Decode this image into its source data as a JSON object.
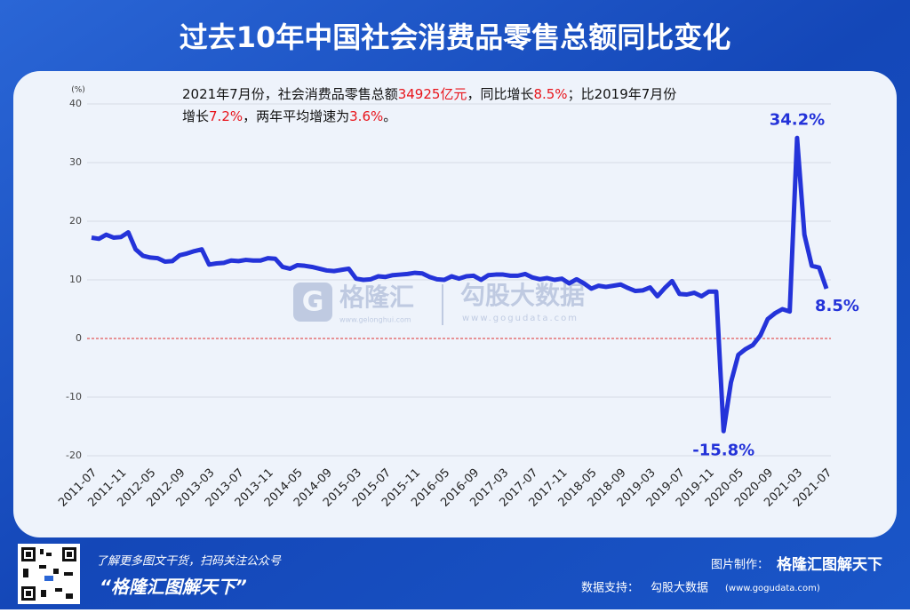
{
  "header": {
    "title": "过去10年中国社会消费品零售总额同比变化"
  },
  "chart_data": {
    "type": "line",
    "y_unit": "(%)",
    "annotation": [
      [
        {
          "text": "2021年7月份，社会消费品零售总额",
          "color": "#111111"
        },
        {
          "text": "34925亿元",
          "color": "#e8141b"
        },
        {
          "text": "，同比增长",
          "color": "#111111"
        },
        {
          "text": "8.5%",
          "color": "#e8141b"
        },
        {
          "text": "；比2019年7月份",
          "color": "#111111"
        }
      ],
      [
        {
          "text": "增长",
          "color": "#111111"
        },
        {
          "text": "7.2%",
          "color": "#e8141b"
        },
        {
          "text": "，两年平均增速为",
          "color": "#111111"
        },
        {
          "text": "3.6%",
          "color": "#e8141b"
        },
        {
          "text": "。",
          "color": "#111111"
        }
      ]
    ],
    "categories": [
      "2011-07",
      null,
      null,
      null,
      "2011-11",
      null,
      null,
      null,
      "2012-05",
      null,
      null,
      null,
      "2012-09",
      null,
      null,
      null,
      "2013-03",
      null,
      null,
      null,
      "2013-07",
      null,
      null,
      null,
      "2013-11",
      null,
      null,
      null,
      "2014-05",
      null,
      null,
      null,
      "2014-09",
      null,
      null,
      null,
      "2015-03",
      null,
      null,
      null,
      "2015-07",
      null,
      null,
      null,
      "2015-11",
      null,
      null,
      null,
      "2016-05",
      null,
      null,
      null,
      "2016-09",
      null,
      null,
      null,
      "2017-03",
      null,
      null,
      null,
      "2017-07",
      null,
      null,
      null,
      "2017-11",
      null,
      null,
      null,
      "2018-05",
      null,
      null,
      null,
      "2018-09",
      null,
      null,
      null,
      "2019-03",
      null,
      null,
      null,
      "2019-07",
      null,
      null,
      null,
      "2019-11",
      null,
      null,
      null,
      "2020-05",
      null,
      null,
      null,
      "2020-09",
      null,
      null,
      null,
      "2021-03",
      null,
      null,
      null,
      "2021-07"
    ],
    "values": [
      17.2,
      17.0,
      17.7,
      17.2,
      17.3,
      18.1,
      15.2,
      14.1,
      13.8,
      13.7,
      13.1,
      13.2,
      14.2,
      14.5,
      14.9,
      15.2,
      12.6,
      12.8,
      12.9,
      13.3,
      13.2,
      13.4,
      13.3,
      13.3,
      13.7,
      13.6,
      12.2,
      11.9,
      12.5,
      12.4,
      12.2,
      11.9,
      11.6,
      11.5,
      11.7,
      11.9,
      10.2,
      10.0,
      10.1,
      10.6,
      10.5,
      10.8,
      10.9,
      11.0,
      11.2,
      11.1,
      10.5,
      10.1,
      10.0,
      10.6,
      10.2,
      10.6,
      10.7,
      10.0,
      10.8,
      10.9,
      10.9,
      10.7,
      10.7,
      11.0,
      10.4,
      10.1,
      10.3,
      10.0,
      10.2,
      9.4,
      10.1,
      9.4,
      8.5,
      9.0,
      8.8,
      9.0,
      9.2,
      8.6,
      8.1,
      8.2,
      8.7,
      7.2,
      8.6,
      9.8,
      7.6,
      7.5,
      7.8,
      7.2,
      8.0,
      8.0,
      -15.8,
      -7.5,
      -2.8,
      -1.8,
      -1.1,
      0.5,
      3.3,
      4.3,
      5.0,
      4.6,
      34.2,
      17.7,
      12.4,
      12.1,
      8.5
    ],
    "value_labels": [
      null,
      null,
      null,
      null,
      null,
      null,
      null,
      null,
      null,
      null,
      null,
      null,
      null,
      null,
      null,
      null,
      null,
      null,
      null,
      null,
      null,
      null,
      null,
      null,
      null,
      null,
      null,
      null,
      null,
      null,
      null,
      null,
      null,
      null,
      null,
      null,
      null,
      null,
      null,
      null,
      null,
      null,
      null,
      null,
      null,
      null,
      null,
      null,
      null,
      null,
      null,
      null,
      null,
      null,
      null,
      null,
      null,
      null,
      null,
      null,
      null,
      null,
      null,
      null,
      null,
      null,
      null,
      null,
      null,
      null,
      null,
      null,
      null,
      null,
      null,
      null,
      null,
      null,
      null,
      null,
      null,
      null,
      null,
      null,
      null,
      null,
      "-15.8%",
      null,
      null,
      null,
      null,
      null,
      null,
      null,
      null,
      null,
      "34.2%",
      null,
      null,
      null,
      "8.5%"
    ],
    "color": "#2433d9",
    "ylim": [
      -20,
      40
    ],
    "yticks": [
      -20,
      -10,
      0,
      10,
      20,
      30,
      40
    ],
    "grid": true,
    "zero_line_color": "#e03030"
  },
  "watermark": {
    "brand": "格隆汇",
    "brand_url": "www.gelonghui.com",
    "partner": "勾股大数据",
    "partner_url": "www.gogudata.com"
  },
  "footer": {
    "promo": "了解更多图文干货，扫码关注公众号",
    "account": "“格隆汇图解天下”",
    "made_by_label": "图片制作：",
    "made_by": "格隆汇图解天下",
    "data_label": "数据支持：",
    "data_source": "勾股大数据",
    "data_url": "(www.gogudata.com)"
  }
}
